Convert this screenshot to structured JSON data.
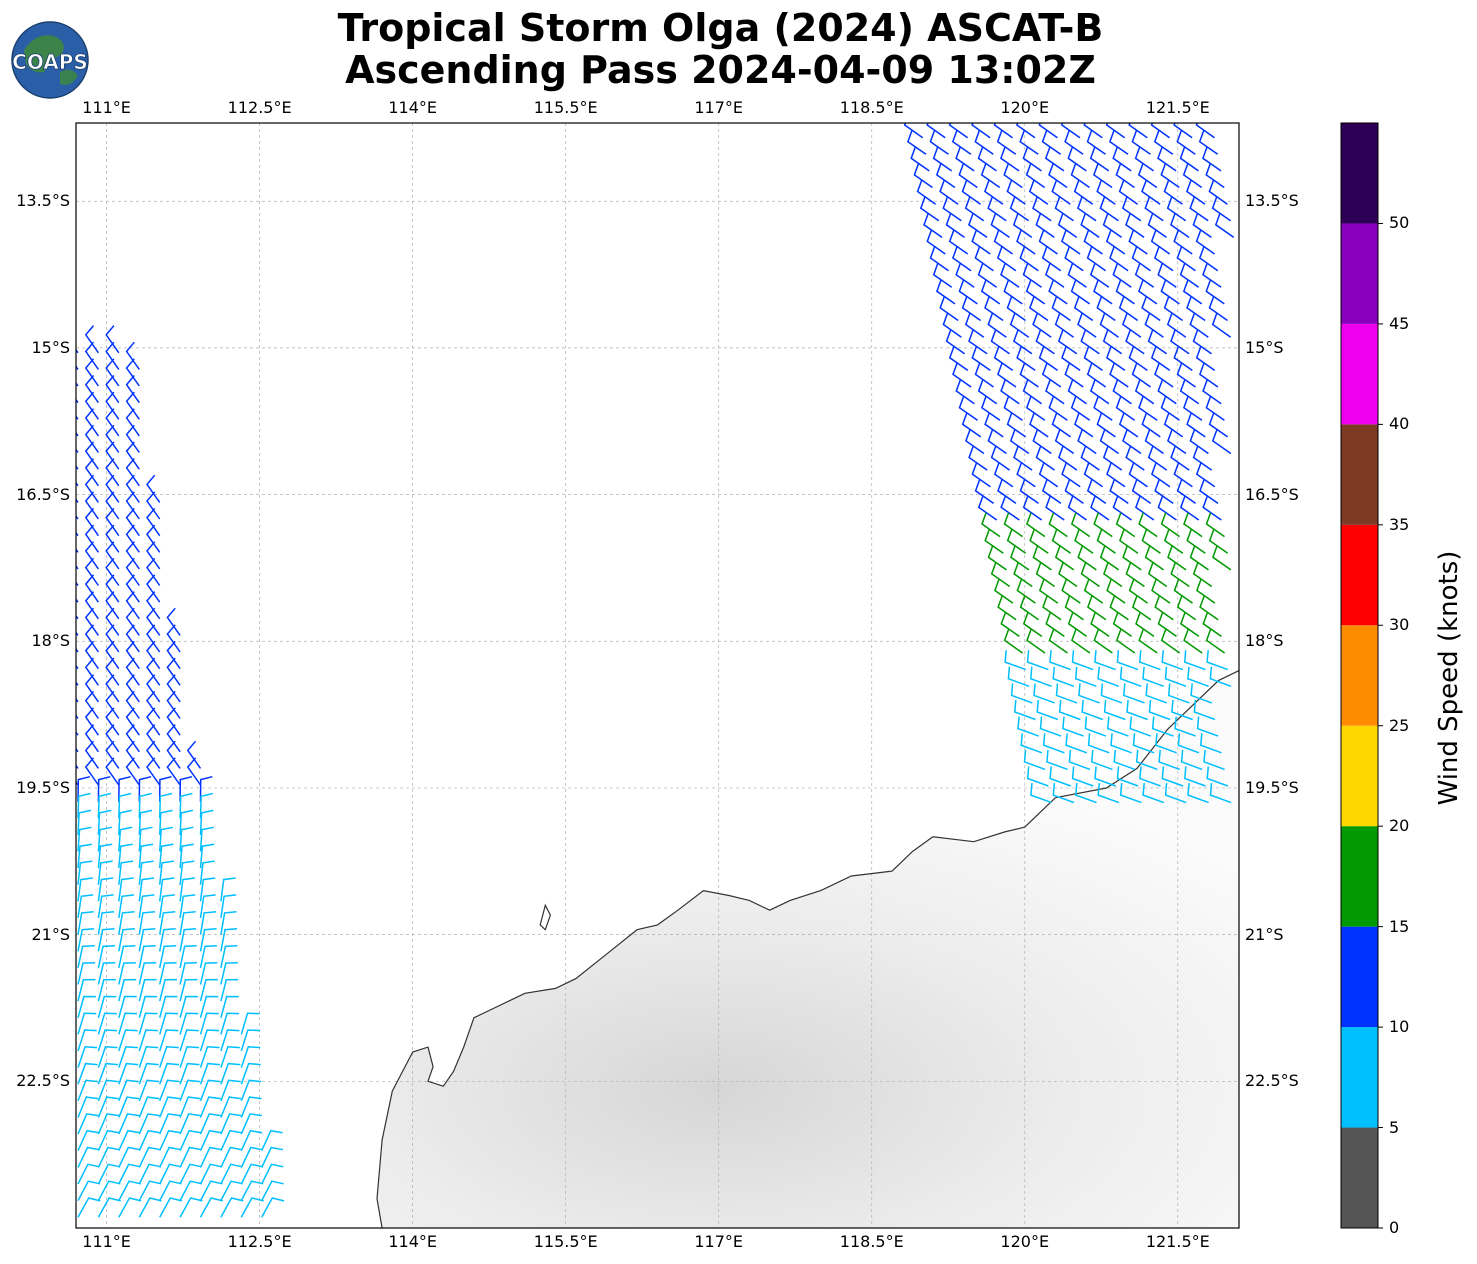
{
  "header": {
    "title_line1": "Tropical Storm Olga (2024) ASCAT-B",
    "title_line2": "Ascending Pass 2024-04-09 13:02Z",
    "logo_text": "COAPS"
  },
  "map": {
    "lon_range": [
      110.7,
      122.1
    ],
    "lat_range": [
      -24.0,
      -12.7
    ],
    "lon_ticks": [
      {
        "value": 111.0,
        "label": "111°E"
      },
      {
        "value": 112.5,
        "label": "112.5°E"
      },
      {
        "value": 114.0,
        "label": "114°E"
      },
      {
        "value": 115.5,
        "label": "115.5°E"
      },
      {
        "value": 117.0,
        "label": "117°E"
      },
      {
        "value": 118.5,
        "label": "118.5°E"
      },
      {
        "value": 120.0,
        "label": "120°E"
      },
      {
        "value": 121.5,
        "label": "121.5°E"
      }
    ],
    "lat_ticks": [
      {
        "value": -13.5,
        "label": "13.5°S"
      },
      {
        "value": -15.0,
        "label": "15°S"
      },
      {
        "value": -16.5,
        "label": "16.5°S"
      },
      {
        "value": -18.0,
        "label": "18°S"
      },
      {
        "value": -19.5,
        "label": "19.5°S"
      },
      {
        "value": -21.0,
        "label": "21°S"
      },
      {
        "value": -22.5,
        "label": "22.5°S"
      }
    ],
    "gridlines": true,
    "coastline": [
      [
        120.3,
        -19.6
      ],
      [
        120.8,
        -19.5
      ],
      [
        121.1,
        -19.3
      ],
      [
        121.4,
        -18.9
      ],
      [
        121.7,
        -18.6
      ],
      [
        121.9,
        -18.4
      ],
      [
        122.1,
        -18.3
      ]
    ],
    "coastline_main": [
      [
        110.7,
        -24.0
      ],
      [
        113.7,
        -24.0
      ],
      [
        113.65,
        -23.7
      ],
      [
        113.7,
        -23.1
      ],
      [
        113.8,
        -22.6
      ],
      [
        114.0,
        -22.2
      ],
      [
        114.15,
        -22.15
      ],
      [
        114.2,
        -22.35
      ],
      [
        114.15,
        -22.5
      ],
      [
        114.3,
        -22.55
      ],
      [
        114.4,
        -22.4
      ],
      [
        114.5,
        -22.15
      ],
      [
        114.6,
        -21.85
      ],
      [
        114.8,
        -21.75
      ],
      [
        115.1,
        -21.6
      ],
      [
        115.4,
        -21.55
      ],
      [
        115.6,
        -21.45
      ],
      [
        115.9,
        -21.2
      ],
      [
        116.2,
        -20.95
      ],
      [
        116.4,
        -20.9
      ],
      [
        116.6,
        -20.75
      ],
      [
        116.85,
        -20.55
      ],
      [
        117.1,
        -20.6
      ],
      [
        117.3,
        -20.65
      ],
      [
        117.5,
        -20.75
      ],
      [
        117.7,
        -20.65
      ],
      [
        118.0,
        -20.55
      ],
      [
        118.3,
        -20.4
      ],
      [
        118.7,
        -20.35
      ],
      [
        118.9,
        -20.15
      ],
      [
        119.1,
        -20.0
      ],
      [
        119.5,
        -20.05
      ],
      [
        119.8,
        -19.95
      ],
      [
        120.0,
        -19.9
      ],
      [
        120.3,
        -19.6
      ]
    ],
    "island": [
      [
        115.25,
        -20.9
      ],
      [
        115.3,
        -20.7
      ],
      [
        115.35,
        -20.8
      ],
      [
        115.3,
        -20.95
      ],
      [
        115.25,
        -20.9
      ]
    ],
    "land_note": ""
  },
  "colorbar": {
    "label": "Wind Speed (knots)",
    "colors": [
      "#555555",
      "#00bfff",
      "#0033ff",
      "#009900",
      "#ffd700",
      "#ff8c00",
      "#ff0000",
      "#7d3b26",
      "#ee00ee",
      "#8800bb",
      "#2d0055"
    ],
    "bounds": [
      0,
      5,
      10,
      15,
      20,
      25,
      30,
      35,
      40,
      45,
      50,
      55
    ],
    "tick_labels": [
      "0",
      "5",
      "10",
      "15",
      "20",
      "25",
      "30",
      "35",
      "40",
      "45",
      "50"
    ]
  },
  "wind_swaths": {
    "west_swath_colors_by_lat": [
      {
        "lat_from": -12.7,
        "lat_to": -19.7,
        "color_index": 2
      },
      {
        "lat_from": -19.7,
        "lat_to": -24.0,
        "color_index": 1
      }
    ],
    "east_swath_colors_by_lat": [
      {
        "lat_from": -12.7,
        "lat_to": -16.8,
        "color_index": 2
      },
      {
        "lat_from": -16.8,
        "lat_to": -18.2,
        "color_index": 3
      },
      {
        "lat_from": -18.2,
        "lat_to": -19.8,
        "color_index": 1
      }
    ]
  }
}
